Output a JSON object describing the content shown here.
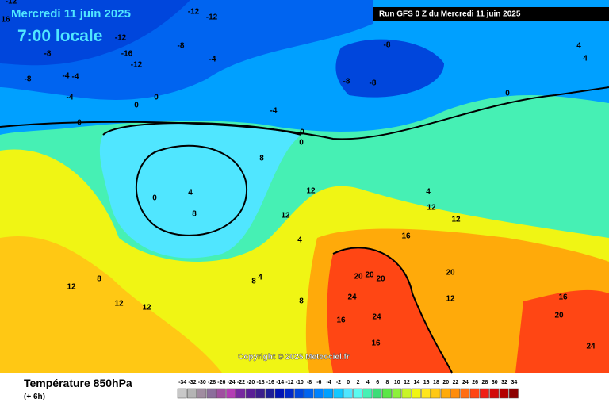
{
  "header": {
    "date": "Mercredi 11 juin 2025",
    "time": "7:00 locale",
    "run": "Run GFS 0 Z du Mercredi 11 juin 2025"
  },
  "copyright": "Copyright © 2025 Meteociel.fr",
  "footer": {
    "title": "Température 850hPa",
    "step": "(+ 6h)"
  },
  "scale": {
    "values": [
      -34,
      -32,
      -30,
      -28,
      -26,
      -24,
      -22,
      -20,
      -18,
      -16,
      -14,
      -12,
      -10,
      -8,
      -6,
      -4,
      -2,
      0,
      2,
      4,
      6,
      8,
      10,
      12,
      14,
      16,
      18,
      20,
      22,
      24,
      26,
      28,
      30,
      32,
      34
    ],
    "colors": [
      "#c8c8c8",
      "#b4b4b4",
      "#a08ca0",
      "#8c6e9c",
      "#a050a0",
      "#b43cb4",
      "#7828a0",
      "#5a1e96",
      "#3c1e8c",
      "#1e1e96",
      "#0014b4",
      "#0028c8",
      "#0046dc",
      "#0064f0",
      "#0082ff",
      "#00a0ff",
      "#14c8ff",
      "#50e6ff",
      "#5afaf0",
      "#46f0b4",
      "#3cdc78",
      "#5ae646",
      "#8cf03c",
      "#c8f528",
      "#f0f514",
      "#ffe61e",
      "#ffc814",
      "#ffaa0a",
      "#ff8c0a",
      "#ff6e14",
      "#ff4614",
      "#f01e14",
      "#d20a0a",
      "#b40000",
      "#8c0000"
    ]
  },
  "map_labels": [
    "-12",
    "-12",
    "-12",
    "16",
    "-12",
    "-8",
    "-16",
    "-12",
    "-8",
    "-4",
    "-4",
    "-8",
    "-4",
    "-8",
    "-8",
    "-8",
    "-4",
    "0",
    "0",
    "-4",
    "0",
    "4",
    "4",
    "0",
    "0",
    "0",
    "4",
    "8",
    "8",
    "12",
    "12",
    "4",
    "4",
    "4",
    "12",
    "12",
    "16",
    "20",
    "20",
    "20",
    "20",
    "24",
    "24",
    "16",
    "16",
    "12",
    "12",
    "8",
    "8",
    "8",
    "12",
    "12",
    "16",
    "20",
    "24",
    "0"
  ]
}
